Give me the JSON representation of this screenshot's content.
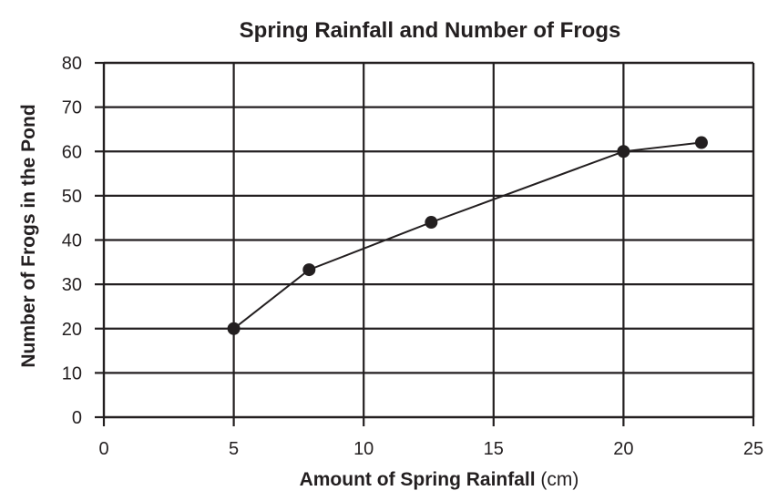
{
  "chart_data": {
    "type": "line",
    "title": "Spring Rainfall and Number of Frogs",
    "xlabel": "Amount of Spring Rainfall",
    "xlabel_unit": "(cm)",
    "ylabel": "Number of Frogs in the Pond",
    "xlim": [
      0,
      25
    ],
    "ylim": [
      0,
      80
    ],
    "x_ticks": [
      0,
      5,
      10,
      15,
      20,
      25
    ],
    "y_ticks": [
      0,
      10,
      20,
      30,
      40,
      50,
      60,
      70,
      80
    ],
    "grid": true,
    "series": [
      {
        "x": [
          5,
          7.9,
          12.6,
          20,
          23
        ],
        "y": [
          20,
          33.3,
          44,
          60,
          62
        ],
        "color": "#231f20",
        "marker": "circle"
      }
    ]
  }
}
